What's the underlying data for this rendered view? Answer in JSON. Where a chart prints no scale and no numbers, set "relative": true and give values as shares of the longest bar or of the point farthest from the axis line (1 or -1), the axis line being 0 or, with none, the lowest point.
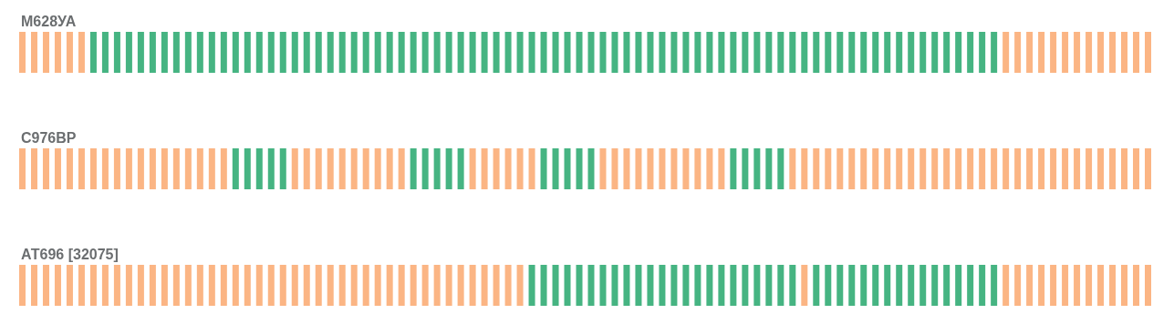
{
  "chart_data": [
    {
      "type": "bar",
      "title": "М628УА",
      "relative": true,
      "categories": [
        null,
        null,
        null,
        null,
        null,
        null,
        null,
        null,
        null,
        null,
        null,
        null,
        null,
        null,
        null,
        null,
        null,
        null,
        null,
        null,
        null,
        null,
        null,
        null,
        null,
        null,
        null,
        null,
        null,
        null,
        null,
        null,
        null,
        null,
        null,
        null,
        null,
        null,
        null,
        null,
        null,
        null,
        null,
        null,
        null,
        null,
        null,
        null,
        null,
        null,
        null,
        null,
        null,
        null,
        null,
        null,
        null,
        null,
        null,
        null,
        null,
        null,
        null,
        null,
        null,
        null,
        null,
        null,
        null,
        null,
        null,
        null,
        null,
        null,
        null,
        null,
        null,
        null,
        null,
        null,
        null,
        null,
        null,
        null,
        null,
        null,
        null,
        null,
        null,
        null,
        null,
        null,
        null,
        null,
        null,
        null
      ],
      "values": [
        1,
        1,
        1,
        1,
        1,
        1,
        1,
        1,
        1,
        1,
        1,
        1,
        1,
        1,
        1,
        1,
        1,
        1,
        1,
        1,
        1,
        1,
        1,
        1,
        1,
        1,
        1,
        1,
        1,
        1,
        1,
        1,
        1,
        1,
        1,
        1,
        1,
        1,
        1,
        1,
        1,
        1,
        1,
        1,
        1,
        1,
        1,
        1,
        1,
        1,
        1,
        1,
        1,
        1,
        1,
        1,
        1,
        1,
        1,
        1,
        1,
        1,
        1,
        1,
        1,
        1,
        1,
        1,
        1,
        1,
        1,
        1,
        1,
        1,
        1,
        1,
        1,
        1,
        1,
        1,
        1,
        1,
        1,
        1,
        1,
        1,
        1,
        1,
        1,
        1,
        1,
        1,
        1,
        1,
        1,
        1
      ],
      "colors": [
        "#fbb584",
        "#fbb584",
        "#fbb584",
        "#fbb584",
        "#fbb584",
        "#fbb584",
        "#46b482",
        "#46b482",
        "#46b482",
        "#46b482",
        "#46b482",
        "#46b482",
        "#46b482",
        "#46b482",
        "#46b482",
        "#46b482",
        "#46b482",
        "#46b482",
        "#46b482",
        "#46b482",
        "#46b482",
        "#46b482",
        "#46b482",
        "#46b482",
        "#46b482",
        "#46b482",
        "#46b482",
        "#46b482",
        "#46b482",
        "#46b482",
        "#46b482",
        "#46b482",
        "#46b482",
        "#46b482",
        "#46b482",
        "#46b482",
        "#46b482",
        "#46b482",
        "#46b482",
        "#46b482",
        "#46b482",
        "#46b482",
        "#46b482",
        "#46b482",
        "#46b482",
        "#46b482",
        "#46b482",
        "#46b482",
        "#46b482",
        "#46b482",
        "#46b482",
        "#46b482",
        "#46b482",
        "#46b482",
        "#46b482",
        "#46b482",
        "#46b482",
        "#46b482",
        "#46b482",
        "#46b482",
        "#46b482",
        "#46b482",
        "#46b482",
        "#46b482",
        "#46b482",
        "#46b482",
        "#46b482",
        "#46b482",
        "#46b482",
        "#46b482",
        "#46b482",
        "#46b482",
        "#46b482",
        "#46b482",
        "#46b482",
        "#46b482",
        "#46b482",
        "#46b482",
        "#46b482",
        "#46b482",
        "#46b482",
        "#46b482",
        "#46b482",
        "#fbb584",
        "#fbb584",
        "#fbb584",
        "#fbb584",
        "#fbb584",
        "#fbb584",
        "#fbb584",
        "#fbb584",
        "#fbb584",
        "#fbb584",
        "#fbb584",
        "#fbb584",
        "#fbb584"
      ]
    },
    {
      "type": "bar",
      "title": "С976ВР",
      "relative": true,
      "categories": [
        null,
        null,
        null,
        null,
        null,
        null,
        null,
        null,
        null,
        null,
        null,
        null,
        null,
        null,
        null,
        null,
        null,
        null,
        null,
        null,
        null,
        null,
        null,
        null,
        null,
        null,
        null,
        null,
        null,
        null,
        null,
        null,
        null,
        null,
        null,
        null,
        null,
        null,
        null,
        null,
        null,
        null,
        null,
        null,
        null,
        null,
        null,
        null,
        null,
        null,
        null,
        null,
        null,
        null,
        null,
        null,
        null,
        null,
        null,
        null,
        null,
        null,
        null,
        null,
        null,
        null,
        null,
        null,
        null,
        null,
        null,
        null,
        null,
        null,
        null,
        null,
        null,
        null,
        null,
        null,
        null,
        null,
        null,
        null,
        null,
        null,
        null,
        null,
        null,
        null,
        null,
        null,
        null,
        null,
        null,
        null
      ],
      "values": [
        1,
        1,
        1,
        1,
        1,
        1,
        1,
        1,
        1,
        1,
        1,
        1,
        1,
        1,
        1,
        1,
        1,
        1,
        1,
        1,
        1,
        1,
        1,
        1,
        1,
        1,
        1,
        1,
        1,
        1,
        1,
        1,
        1,
        1,
        1,
        1,
        1,
        1,
        1,
        1,
        1,
        1,
        1,
        1,
        1,
        1,
        1,
        1,
        1,
        1,
        1,
        1,
        1,
        1,
        1,
        1,
        1,
        1,
        1,
        1,
        1,
        1,
        1,
        1,
        1,
        1,
        1,
        1,
        1,
        1,
        1,
        1,
        1,
        1,
        1,
        1,
        1,
        1,
        1,
        1,
        1,
        1,
        1,
        1,
        1,
        1,
        1,
        1,
        1,
        1,
        1,
        1,
        1,
        1,
        1,
        1
      ],
      "colors": [
        "#fbb584",
        "#fbb584",
        "#fbb584",
        "#fbb584",
        "#fbb584",
        "#fbb584",
        "#fbb584",
        "#fbb584",
        "#fbb584",
        "#fbb584",
        "#fbb584",
        "#fbb584",
        "#fbb584",
        "#fbb584",
        "#fbb584",
        "#fbb584",
        "#fbb584",
        "#fbb584",
        "#46b482",
        "#46b482",
        "#46b482",
        "#46b482",
        "#46b482",
        "#fbb584",
        "#fbb584",
        "#fbb584",
        "#fbb584",
        "#fbb584",
        "#fbb584",
        "#fbb584",
        "#fbb584",
        "#fbb584",
        "#fbb584",
        "#46b482",
        "#46b482",
        "#46b482",
        "#46b482",
        "#46b482",
        "#fbb584",
        "#fbb584",
        "#fbb584",
        "#fbb584",
        "#fbb584",
        "#fbb584",
        "#46b482",
        "#46b482",
        "#46b482",
        "#46b482",
        "#46b482",
        "#fbb584",
        "#fbb584",
        "#fbb584",
        "#fbb584",
        "#fbb584",
        "#fbb584",
        "#fbb584",
        "#fbb584",
        "#fbb584",
        "#fbb584",
        "#fbb584",
        "#46b482",
        "#46b482",
        "#46b482",
        "#46b482",
        "#46b482",
        "#fbb584",
        "#fbb584",
        "#fbb584",
        "#fbb584",
        "#fbb584",
        "#fbb584",
        "#fbb584",
        "#fbb584",
        "#fbb584",
        "#fbb584",
        "#fbb584",
        "#fbb584",
        "#fbb584",
        "#fbb584",
        "#fbb584",
        "#fbb584",
        "#fbb584",
        "#fbb584",
        "#fbb584",
        "#fbb584",
        "#fbb584",
        "#fbb584",
        "#fbb584",
        "#fbb584",
        "#fbb584",
        "#fbb584",
        "#fbb584",
        "#fbb584",
        "#fbb584",
        "#fbb584",
        "#fbb584"
      ]
    },
    {
      "type": "bar",
      "title": "АТ696 [32075]",
      "relative": true,
      "categories": [
        null,
        null,
        null,
        null,
        null,
        null,
        null,
        null,
        null,
        null,
        null,
        null,
        null,
        null,
        null,
        null,
        null,
        null,
        null,
        null,
        null,
        null,
        null,
        null,
        null,
        null,
        null,
        null,
        null,
        null,
        null,
        null,
        null,
        null,
        null,
        null,
        null,
        null,
        null,
        null,
        null,
        null,
        null,
        null,
        null,
        null,
        null,
        null,
        null,
        null,
        null,
        null,
        null,
        null,
        null,
        null,
        null,
        null,
        null,
        null,
        null,
        null,
        null,
        null,
        null,
        null,
        null,
        null,
        null,
        null,
        null,
        null,
        null,
        null,
        null,
        null,
        null,
        null,
        null,
        null,
        null,
        null,
        null,
        null,
        null,
        null,
        null,
        null,
        null,
        null,
        null,
        null,
        null,
        null,
        null,
        null
      ],
      "values": [
        1,
        1,
        1,
        1,
        1,
        1,
        1,
        1,
        1,
        1,
        1,
        1,
        1,
        1,
        1,
        1,
        1,
        1,
        1,
        1,
        1,
        1,
        1,
        1,
        1,
        1,
        1,
        1,
        1,
        1,
        1,
        1,
        1,
        1,
        1,
        1,
        1,
        1,
        1,
        1,
        1,
        1,
        1,
        1,
        1,
        1,
        1,
        1,
        1,
        1,
        1,
        1,
        1,
        1,
        1,
        1,
        1,
        1,
        1,
        1,
        1,
        1,
        1,
        1,
        1,
        1,
        1,
        1,
        1,
        1,
        1,
        1,
        1,
        1,
        1,
        1,
        1,
        1,
        1,
        1,
        1,
        1,
        1,
        1,
        1,
        1,
        1,
        1,
        1,
        1,
        1,
        1,
        1,
        1,
        1,
        1
      ],
      "colors": [
        "#fbb584",
        "#fbb584",
        "#fbb584",
        "#fbb584",
        "#fbb584",
        "#fbb584",
        "#fbb584",
        "#fbb584",
        "#fbb584",
        "#fbb584",
        "#fbb584",
        "#fbb584",
        "#fbb584",
        "#fbb584",
        "#fbb584",
        "#fbb584",
        "#fbb584",
        "#fbb584",
        "#fbb584",
        "#fbb584",
        "#fbb584",
        "#fbb584",
        "#fbb584",
        "#fbb584",
        "#fbb584",
        "#fbb584",
        "#fbb584",
        "#fbb584",
        "#fbb584",
        "#fbb584",
        "#fbb584",
        "#fbb584",
        "#fbb584",
        "#fbb584",
        "#fbb584",
        "#fbb584",
        "#fbb584",
        "#fbb584",
        "#fbb584",
        "#fbb584",
        "#fbb584",
        "#fbb584",
        "#fbb584",
        "#46b482",
        "#46b482",
        "#46b482",
        "#46b482",
        "#46b482",
        "#46b482",
        "#46b482",
        "#46b482",
        "#46b482",
        "#46b482",
        "#46b482",
        "#46b482",
        "#46b482",
        "#46b482",
        "#46b482",
        "#46b482",
        "#46b482",
        "#46b482",
        "#46b482",
        "#46b482",
        "#46b482",
        "#46b482",
        "#46b482",
        "#fbb584",
        "#46b482",
        "#46b482",
        "#46b482",
        "#46b482",
        "#46b482",
        "#46b482",
        "#46b482",
        "#46b482",
        "#46b482",
        "#46b482",
        "#46b482",
        "#46b482",
        "#46b482",
        "#46b482",
        "#46b482",
        "#46b482",
        "#fbb584",
        "#fbb584",
        "#fbb584",
        "#fbb584",
        "#fbb584",
        "#fbb584",
        "#fbb584",
        "#fbb584",
        "#fbb584",
        "#fbb584",
        "#fbb584",
        "#fbb584",
        "#fbb584"
      ]
    }
  ]
}
